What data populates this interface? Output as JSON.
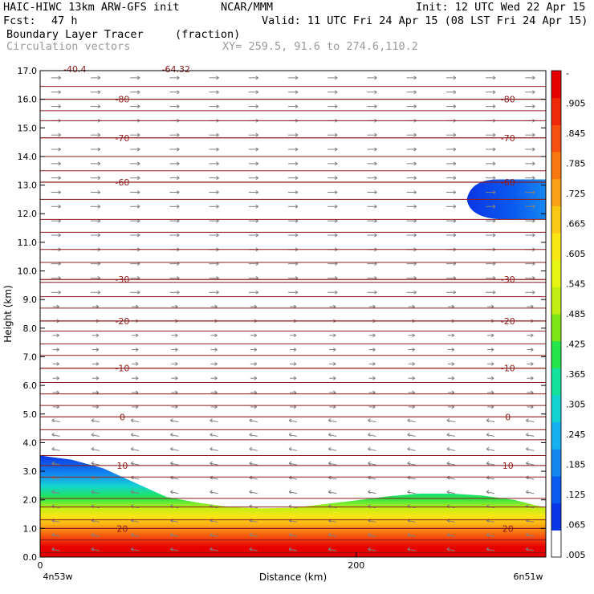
{
  "header": {
    "model": "HAIC-HIWC 13km ARW-GFS init",
    "org": "NCAR/MMM",
    "init": "Init: 12 UTC Wed 22 Apr 15",
    "fcst_label": "Fcst:",
    "fcst_value": "47 h",
    "valid": "Valid: 11 UTC Fri 24 Apr 15 (08 LST Fri 24 Apr 15)",
    "field_name": "Boundary Layer Tracer",
    "field_units": "(fraction)",
    "vectors_label": "Circulation vectors",
    "xy_label": "XY= 259.5, 91.6 to 274.6,110.2"
  },
  "colors": {
    "contour": "#8b1a1a",
    "vector": "#808080",
    "colorbar": [
      "#ffffff",
      "#0a35e6",
      "#0a5cf0",
      "#1487f0",
      "#14b0f0",
      "#14d2d2",
      "#14e19b",
      "#23e64b",
      "#7de614",
      "#c3ee14",
      "#e6f514",
      "#fae614",
      "#fac814",
      "#faa014",
      "#fa780f",
      "#f5500f",
      "#f0280a",
      "#e60000"
    ]
  },
  "chart_data": {
    "type": "heatmap",
    "title": "Boundary Layer Tracer (fraction)",
    "xlabel": "Distance (km)",
    "ylabel": "Height (km)",
    "xlim": [
      0,
      320
    ],
    "ylim": [
      0,
      17
    ],
    "x_ticks": [
      0,
      200
    ],
    "x_tick_labels": [
      "0",
      "200"
    ],
    "x_end_labels": [
      "4n53w",
      "6n51w"
    ],
    "y_ticks": [
      0.0,
      1.0,
      2.0,
      3.0,
      4.0,
      5.0,
      6.0,
      7.0,
      8.0,
      9.0,
      10.0,
      11.0,
      12.0,
      13.0,
      14.0,
      15.0,
      16.0,
      17.0
    ],
    "y_tick_labels": [
      "0.0",
      "1.0",
      "2.0",
      "3.0",
      "4.0",
      "5.0",
      "6.0",
      "7.0",
      "8.0",
      "9.0",
      "10.0",
      "11.0",
      "12.0",
      "13.0",
      "14.0",
      "15.0",
      "16.0",
      "17.0"
    ],
    "colorbar_labels": [
      "-",
      ".905",
      ".845",
      ".785",
      ".725",
      ".665",
      ".605",
      ".545",
      ".485",
      ".425",
      ".365",
      ".305",
      ".245",
      ".185",
      ".125",
      ".065",
      ".005"
    ],
    "bl_top_height_km": [
      3.55,
      3.4,
      3.1,
      2.6,
      2.1,
      1.9,
      1.75,
      1.7,
      1.72,
      1.85,
      1.98,
      2.12,
      2.22,
      2.22,
      2.15,
      2.0,
      1.72
    ],
    "bl_top_x_km": [
      0,
      20,
      40,
      60,
      80,
      100,
      120,
      140,
      160,
      180,
      200,
      220,
      240,
      260,
      280,
      300,
      320
    ],
    "upper_tracer_patch": {
      "x_start_km": 270,
      "x_end_km": 320,
      "bottom_km": 11.8,
      "top_km": 13.2
    },
    "temperature_contours": [
      {
        "label": "-80",
        "height_km": 16.0
      },
      {
        "label": "-70",
        "height_km": 14.65
      },
      {
        "label": "-60",
        "height_km": 13.1
      },
      {
        "label": "-30",
        "height_km": 9.7
      },
      {
        "label": "-20",
        "height_km": 8.25
      },
      {
        "label": "-10",
        "height_km": 6.6
      },
      {
        "label": "0",
        "height_km": 4.9
      },
      {
        "label": "10",
        "height_km": 3.2
      },
      {
        "label": "20",
        "height_km": 1.0
      }
    ],
    "contour_top_labels": [
      "-40.4",
      "-64.32"
    ]
  }
}
